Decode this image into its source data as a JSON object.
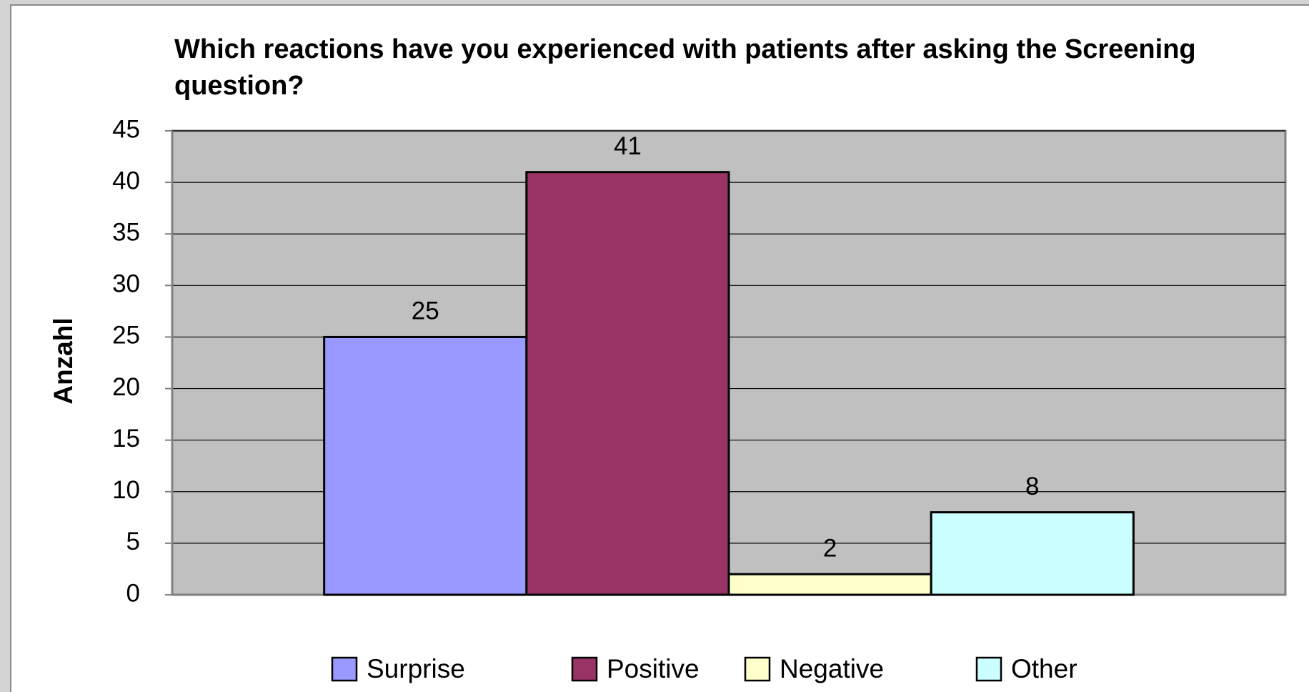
{
  "chart_data": {
    "type": "bar",
    "title": "Which reactions have you experienced with patients after asking the Screening question?",
    "y_label": "Anzahl",
    "categories": [
      null
    ],
    "series": [
      {
        "name": "Surprise",
        "color": "#9999ff",
        "values": [
          25
        ]
      },
      {
        "name": "Positive",
        "color": "#993366",
        "values": [
          41
        ]
      },
      {
        "name": "Negative",
        "color": "#ffffcc",
        "values": [
          2
        ]
      },
      {
        "name": "Other",
        "color": "#ccffff",
        "values": [
          8
        ]
      }
    ],
    "ylim": [
      0,
      45
    ],
    "yticks": [
      0,
      5,
      10,
      15,
      20,
      25,
      30,
      35,
      40,
      45
    ],
    "grid": true,
    "legend": "bottom"
  }
}
